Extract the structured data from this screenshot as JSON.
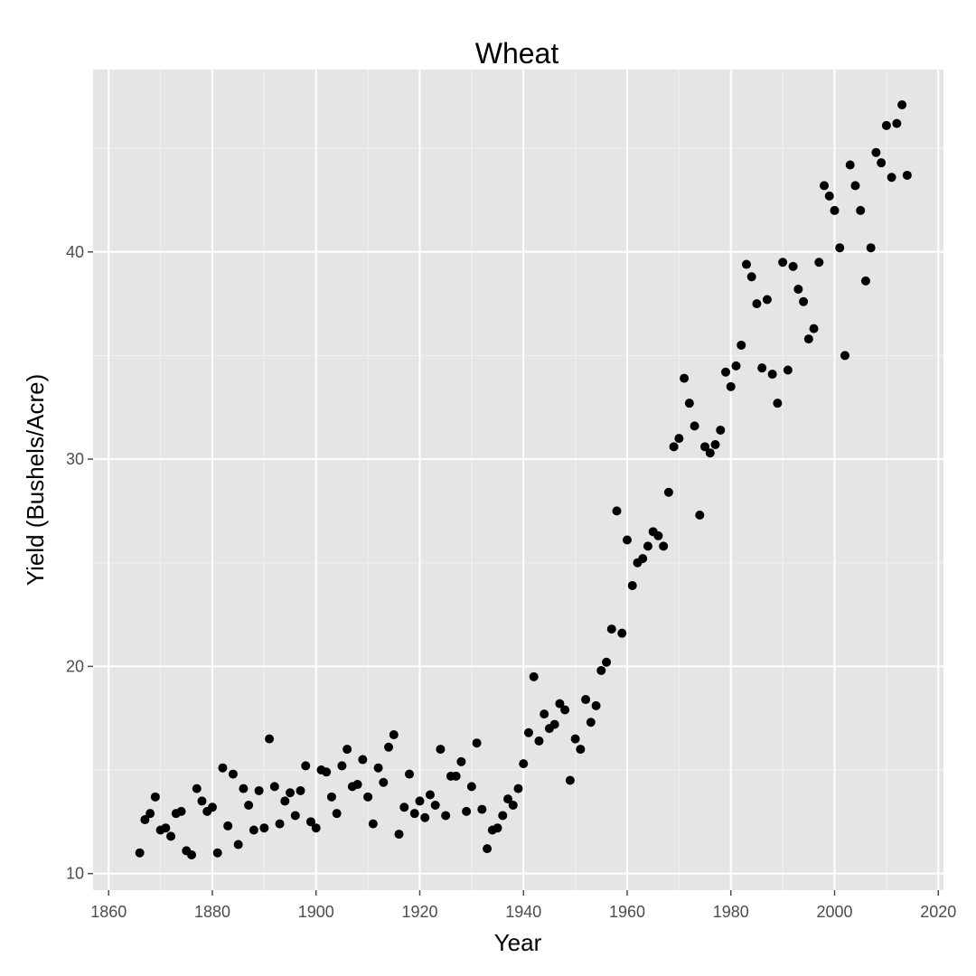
{
  "chart_data": {
    "type": "scatter",
    "title": "Wheat",
    "xlabel": "Year",
    "ylabel": "Yield (Bushels/Acre)",
    "xlim": [
      1857,
      2021
    ],
    "ylim": [
      9.2,
      48.8
    ],
    "x_ticks": [
      1860,
      1880,
      1900,
      1920,
      1940,
      1960,
      1980,
      2000,
      2020
    ],
    "y_ticks": [
      10,
      20,
      30,
      40
    ],
    "x_tick_labels": [
      "1860",
      "1880",
      "1900",
      "1920",
      "1940",
      "1960",
      "1980",
      "2000",
      "2020"
    ],
    "y_tick_labels": [
      "10",
      "20",
      "30",
      "40"
    ],
    "grid": true,
    "legend": "none",
    "colors": {
      "panel": "#e5e5e5",
      "grid": "#ffffff",
      "point": "#000000",
      "tick": "#4d4d4d"
    },
    "series": [
      {
        "x": [
          1866,
          1867,
          1868,
          1869,
          1870,
          1871,
          1872,
          1873,
          1874,
          1875,
          1876,
          1877,
          1878,
          1879,
          1880,
          1881,
          1882,
          1883,
          1884,
          1885,
          1886,
          1887,
          1888,
          1889,
          1890,
          1891,
          1892,
          1893,
          1894,
          1895,
          1896,
          1897,
          1898,
          1899,
          1900,
          1901,
          1902,
          1903,
          1904,
          1905,
          1906,
          1907,
          1908,
          1909,
          1910,
          1911,
          1912,
          1913,
          1914,
          1915,
          1916,
          1917,
          1918,
          1919,
          1920,
          1921,
          1922,
          1923,
          1924,
          1925,
          1926,
          1927,
          1928,
          1929,
          1930,
          1931,
          1932,
          1933,
          1934,
          1935,
          1936,
          1937,
          1938,
          1939,
          1940,
          1941,
          1942,
          1943,
          1944,
          1945,
          1946,
          1947,
          1948,
          1949,
          1950,
          1951,
          1952,
          1953,
          1954,
          1955,
          1956,
          1957,
          1958,
          1959,
          1960,
          1961,
          1962,
          1963,
          1964,
          1965,
          1966,
          1967,
          1968,
          1969,
          1970,
          1971,
          1972,
          1973,
          1974,
          1975,
          1976,
          1977,
          1978,
          1979,
          1980,
          1981,
          1982,
          1983,
          1984,
          1985,
          1986,
          1987,
          1988,
          1989,
          1990,
          1991,
          1992,
          1993,
          1994,
          1995,
          1996,
          1997,
          1998,
          1999,
          2000,
          2001,
          2002,
          2003,
          2004,
          2005,
          2006,
          2007,
          2008,
          2009,
          2010,
          2011,
          2012,
          2013,
          2014
        ],
        "y": [
          11.0,
          12.6,
          12.9,
          13.7,
          12.1,
          12.2,
          11.8,
          12.9,
          13.0,
          11.1,
          10.9,
          14.1,
          13.5,
          13.0,
          13.2,
          11.0,
          15.1,
          12.3,
          14.8,
          11.4,
          14.1,
          13.3,
          12.1,
          14.0,
          12.2,
          16.5,
          14.2,
          12.4,
          13.5,
          13.9,
          12.8,
          14.0,
          15.2,
          12.5,
          12.2,
          15.0,
          14.9,
          13.7,
          12.9,
          15.2,
          16.0,
          14.2,
          14.3,
          15.5,
          13.7,
          12.4,
          15.1,
          14.4,
          16.1,
          16.7,
          11.9,
          13.2,
          14.8,
          12.9,
          13.5,
          12.7,
          13.8,
          13.3,
          16.0,
          12.8,
          14.7,
          14.7,
          15.4,
          13.0,
          14.2,
          16.3,
          13.1,
          11.2,
          12.1,
          12.2,
          12.8,
          13.6,
          13.3,
          14.1,
          15.3,
          16.8,
          19.5,
          16.4,
          17.7,
          17.0,
          17.2,
          18.2,
          17.9,
          14.5,
          16.5,
          16.0,
          18.4,
          17.3,
          18.1,
          19.8,
          20.2,
          21.8,
          27.5,
          21.6,
          26.1,
          23.9,
          25.0,
          25.2,
          25.8,
          26.5,
          26.3,
          25.8,
          28.4,
          30.6,
          31.0,
          33.9,
          32.7,
          31.6,
          27.3,
          30.6,
          30.3,
          30.7,
          31.4,
          34.2,
          33.5,
          34.5,
          35.5,
          39.4,
          38.8,
          37.5,
          34.4,
          37.7,
          34.1,
          32.7,
          39.5,
          34.3,
          39.3,
          38.2,
          37.6,
          35.8,
          36.3,
          39.5,
          43.2,
          42.7,
          42.0,
          40.2,
          35.0,
          44.2,
          43.2,
          42.0,
          38.6,
          40.2,
          44.8,
          44.3,
          46.1,
          43.6,
          46.2,
          47.1,
          43.7
        ]
      }
    ]
  }
}
